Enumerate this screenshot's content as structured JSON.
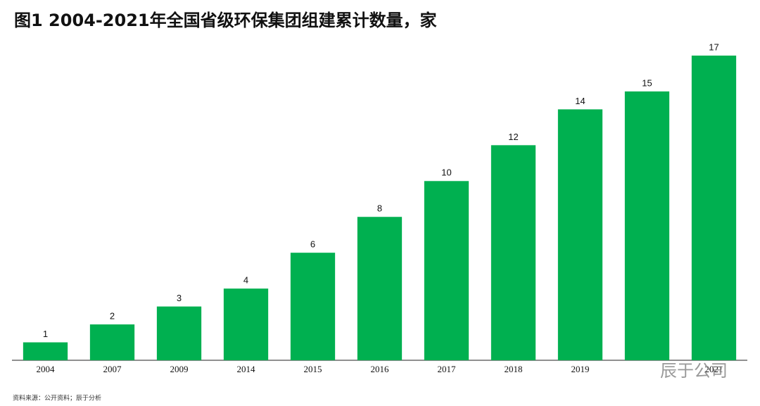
{
  "chart_data": {
    "type": "bar",
    "title": "图1  2004-2021年全国省级环保集团组建累计数量，家",
    "categories": [
      "2004",
      "2007",
      "2009",
      "2014",
      "2015",
      "2016",
      "2017",
      "2018",
      "2019",
      null,
      "2021"
    ],
    "values": [
      1,
      2,
      3,
      4,
      6,
      8,
      10,
      12,
      14,
      15,
      17
    ],
    "color": "#00b050",
    "source": "资料来源：公开资料；辰于分析",
    "watermark": "辰于公司"
  }
}
